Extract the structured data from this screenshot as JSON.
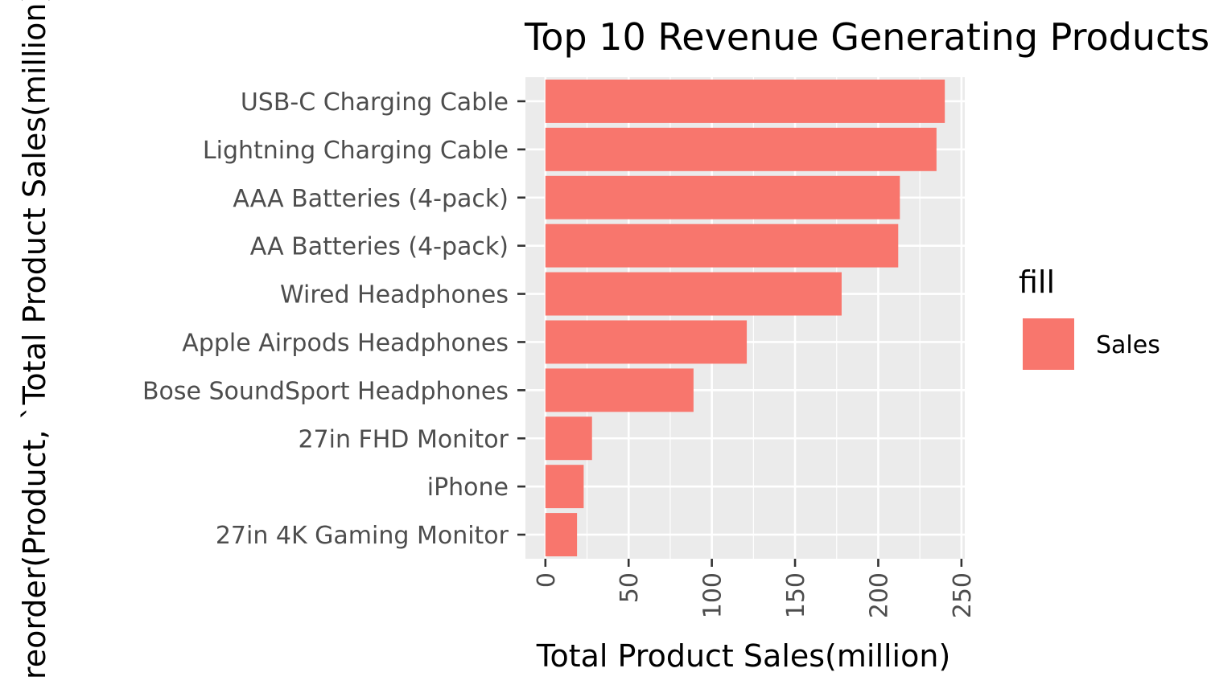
{
  "chart_data": {
    "type": "bar",
    "orientation": "horizontal",
    "title": "Top 10 Revenue Generating Products",
    "xlabel": "Total Product Sales(million)",
    "ylabel": "reorder(Product, `Total Product Sales(million)`)",
    "categories": [
      "USB-C Charging Cable",
      "Lightning Charging Cable",
      "AAA Batteries (4-pack)",
      "AA Batteries (4-pack)",
      "Wired Headphones",
      "Apple Airpods Headphones",
      "Bose SoundSport Headphones",
      "27in FHD Monitor",
      "iPhone",
      "27in 4K Gaming Monitor"
    ],
    "series": [
      {
        "name": "Sales",
        "values": [
          240,
          235,
          213,
          212,
          178,
          121,
          89,
          28,
          23,
          19
        ]
      }
    ],
    "xlim": [
      -12,
      252
    ],
    "xticks": [
      "0",
      "50",
      "100",
      "150",
      "200",
      "250"
    ],
    "grid": true,
    "legend": {
      "title": "fill",
      "position": "right"
    },
    "colors": {
      "bar": "#F8766D",
      "panel": "#EBEBEB",
      "grid": "#FFFFFF"
    }
  }
}
